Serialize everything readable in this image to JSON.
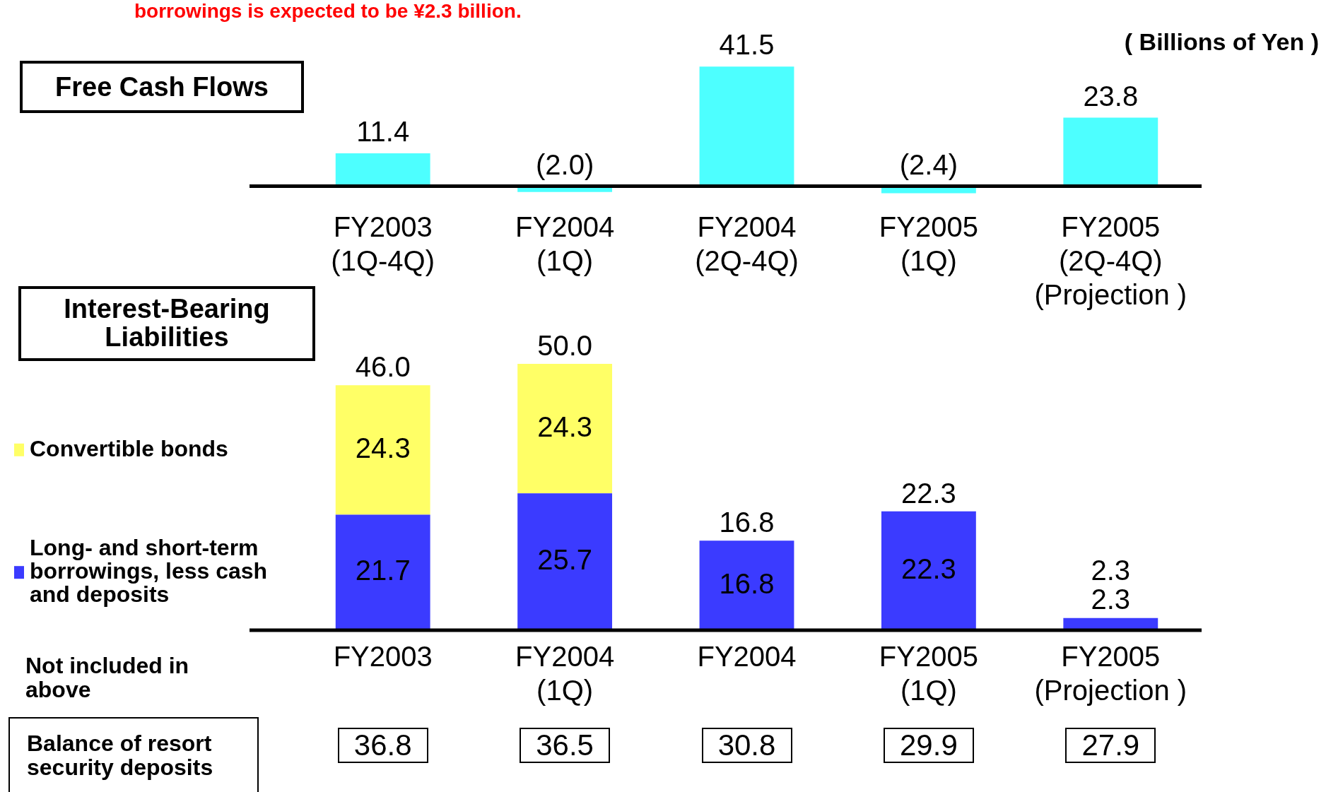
{
  "chart_data": [
    {
      "type": "bar",
      "title": "Free Cash Flows",
      "annotations": [
        "borrowings is expected to be ¥2.3 billion.",
        "( Billions of Yen )"
      ],
      "categories": [
        "FY2003\n(1Q-4Q)",
        "FY2004\n(1Q)",
        "FY2004\n(2Q-4Q)",
        "FY2005\n(1Q)",
        "FY2005\n(2Q-4Q)\n(Projection )"
      ],
      "values": [
        11.4,
        -2.0,
        41.5,
        -2.4,
        23.8
      ],
      "color": "#4dffff",
      "value_labels": [
        "11.4",
        "(2.0)",
        "41.5",
        "(2.4)",
        "23.8"
      ]
    },
    {
      "type": "bar",
      "title": "Interest-Bearing Liabilities",
      "stacked": true,
      "data_labels": true,
      "legend": "left",
      "categories": [
        "FY2003",
        "FY2004\n(1Q)",
        "FY2004",
        "FY2005\n(1Q)",
        "FY2005\n(Projection )"
      ],
      "series": [
        {
          "name": "Long- and short-term borrowings, less cash and deposits",
          "color": "#3b3bff",
          "values": [
            21.7,
            25.7,
            16.8,
            22.3,
            2.3
          ]
        },
        {
          "name": "Convertible bonds",
          "color": "#ffff66",
          "values": [
            24.3,
            24.3,
            null,
            null,
            null
          ]
        }
      ],
      "totals": [
        "46.0",
        "50.0",
        "16.8",
        "22.3",
        "2.3"
      ],
      "annotations": [
        "Not included in above",
        "Balance of resort security deposits",
        "36.8",
        "36.5",
        "30.8",
        "29.9",
        "27.9"
      ]
    }
  ]
}
